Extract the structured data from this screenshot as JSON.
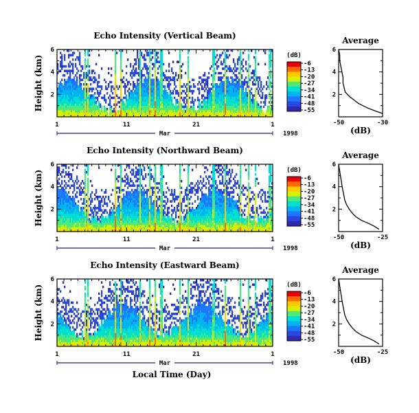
{
  "figure": {
    "x_axis_label": "Local Time (Day)",
    "year_label": "1998",
    "month_label": "Mar"
  },
  "colorbar": {
    "unit": "(dB)",
    "ticks": [
      "-6",
      "-13",
      "-20",
      "-27",
      "-34",
      "-41",
      "-48",
      "-55"
    ],
    "colors": [
      "#e8000b",
      "#ff6a00",
      "#ffc800",
      "#d8f000",
      "#50e878",
      "#00e0d0",
      "#00b4f0",
      "#1e78ff",
      "#2848e0",
      "#3028b0"
    ]
  },
  "chart_data": [
    {
      "type": "heatmap",
      "title": "Echo Intensity (Vertical Beam)",
      "ylabel": "Height (km)",
      "xlabel": "",
      "x_range": [
        1,
        32
      ],
      "x_ticks": [
        "1",
        "11",
        "21",
        "1"
      ],
      "x_tick_values": [
        1,
        11,
        21,
        32
      ],
      "ylim": [
        0,
        6
      ],
      "y_ticks": [
        2,
        4,
        6
      ],
      "value_range_dB": [
        -55,
        -6
      ],
      "profile": {
        "title": "Average",
        "xlabel": "(dB)",
        "xlim": [
          -50,
          -30
        ],
        "x_ticks": [
          "-50",
          "-30"
        ],
        "ylim": [
          0,
          6
        ],
        "y_ticks": [
          "2",
          "4",
          "6"
        ],
        "height_km": [
          0.3,
          0.5,
          0.8,
          1.0,
          1.2,
          1.5,
          1.8,
          2.0,
          2.2,
          2.6,
          3.0,
          3.5,
          4.0,
          4.5,
          5.0,
          5.5,
          6.0
        ],
        "dB": [
          -30,
          -33,
          -37,
          -39,
          -41,
          -43,
          -45,
          -46,
          -47,
          -47.5,
          -48,
          -48,
          -48.5,
          -49,
          -49.5,
          -49.5,
          -50
        ]
      }
    },
    {
      "type": "heatmap",
      "title": "Echo Intensity (Northward Beam)",
      "ylabel": "Height (km)",
      "xlabel": "",
      "x_range": [
        1,
        32
      ],
      "x_ticks": [
        "1",
        "11",
        "21",
        "1"
      ],
      "x_tick_values": [
        1,
        11,
        21,
        32
      ],
      "ylim": [
        0,
        6
      ],
      "y_ticks": [
        2,
        4,
        6
      ],
      "value_range_dB": [
        -55,
        -6
      ],
      "profile": {
        "title": "Average",
        "xlabel": "(dB)",
        "xlim": [
          -50,
          -25
        ],
        "x_ticks": [
          "-50",
          "-25"
        ],
        "ylim": [
          0,
          6
        ],
        "y_ticks": [
          "2",
          "4",
          "6"
        ],
        "height_km": [
          0.2,
          0.5,
          0.8,
          1.0,
          1.3,
          1.6,
          2.0,
          2.4,
          2.8,
          3.2,
          3.6,
          4.0,
          4.5,
          5.0,
          5.5,
          6.0
        ],
        "dB": [
          -27,
          -30,
          -34,
          -37,
          -40,
          -42,
          -44,
          -45.5,
          -46.5,
          -47,
          -47.5,
          -48,
          -48.5,
          -49,
          -49.5,
          -50
        ]
      }
    },
    {
      "type": "heatmap",
      "title": "Echo Intensity (Eastward Beam)",
      "ylabel": "Height (km)",
      "xlabel": "Local Time (Day)",
      "x_range": [
        1,
        32
      ],
      "x_ticks": [
        "1",
        "11",
        "21",
        "1"
      ],
      "x_tick_values": [
        1,
        11,
        21,
        32
      ],
      "ylim": [
        0,
        6
      ],
      "y_ticks": [
        2,
        4,
        6
      ],
      "value_range_dB": [
        -55,
        -6
      ],
      "profile": {
        "title": "Average",
        "xlabel": "(dB)",
        "xlim": [
          -50,
          -25
        ],
        "x_ticks": [
          "-50",
          "-25"
        ],
        "ylim": [
          0,
          6
        ],
        "y_ticks": [
          "2",
          "4",
          "6"
        ],
        "height_km": [
          0.2,
          0.5,
          0.8,
          1.0,
          1.3,
          1.6,
          2.0,
          2.4,
          2.8,
          3.2,
          3.6,
          4.0,
          4.5,
          5.0,
          5.5,
          6.0
        ],
        "dB": [
          -27,
          -30,
          -34,
          -37,
          -40,
          -42,
          -44,
          -45.5,
          -46.5,
          -47,
          -47.5,
          -48,
          -48.5,
          -49,
          -49.5,
          -50
        ]
      }
    }
  ]
}
